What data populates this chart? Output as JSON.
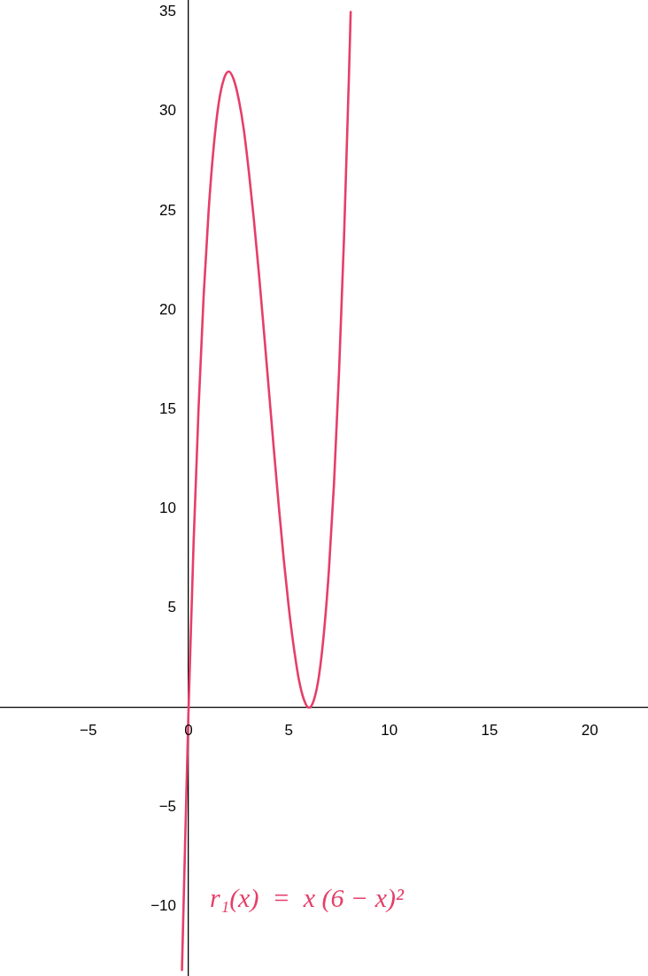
{
  "chart_data": {
    "type": "line",
    "xlim": [
      -9.4,
      22.9
    ],
    "ylim": [
      -13.5,
      35.6
    ],
    "xticks": [
      -5,
      0,
      5,
      10,
      15,
      20
    ],
    "yticks": [
      -10,
      -5,
      5,
      10,
      15,
      20,
      25,
      30,
      35
    ],
    "marker": "none",
    "legend": false,
    "series": [
      {
        "name": "r₁(x)  =  x (6 − x)²",
        "color": "#e63e68",
        "x": [
          -0.33,
          0,
          0.25,
          0.5,
          0.75,
          1,
          1.25,
          1.5,
          1.75,
          2,
          2.25,
          2.5,
          2.75,
          3,
          3.25,
          3.5,
          3.75,
          4,
          4.25,
          4.5,
          4.75,
          5,
          5.25,
          5.5,
          5.75,
          6,
          6.25,
          6.5,
          6.75,
          7,
          7.25,
          7.5,
          7.75,
          8,
          8.08
        ],
        "values": [
          -13.2,
          0,
          8.3,
          15.1,
          20.7,
          25,
          28.2,
          30.4,
          31.6,
          32,
          31.6,
          30.6,
          29.1,
          27,
          24.6,
          21.9,
          19,
          16,
          13,
          10.1,
          7.4,
          5,
          3,
          1.4,
          0.4,
          0,
          0.4,
          1.6,
          3.8,
          7,
          11.3,
          16.9,
          23.7,
          32,
          35
        ]
      }
    ]
  }
}
